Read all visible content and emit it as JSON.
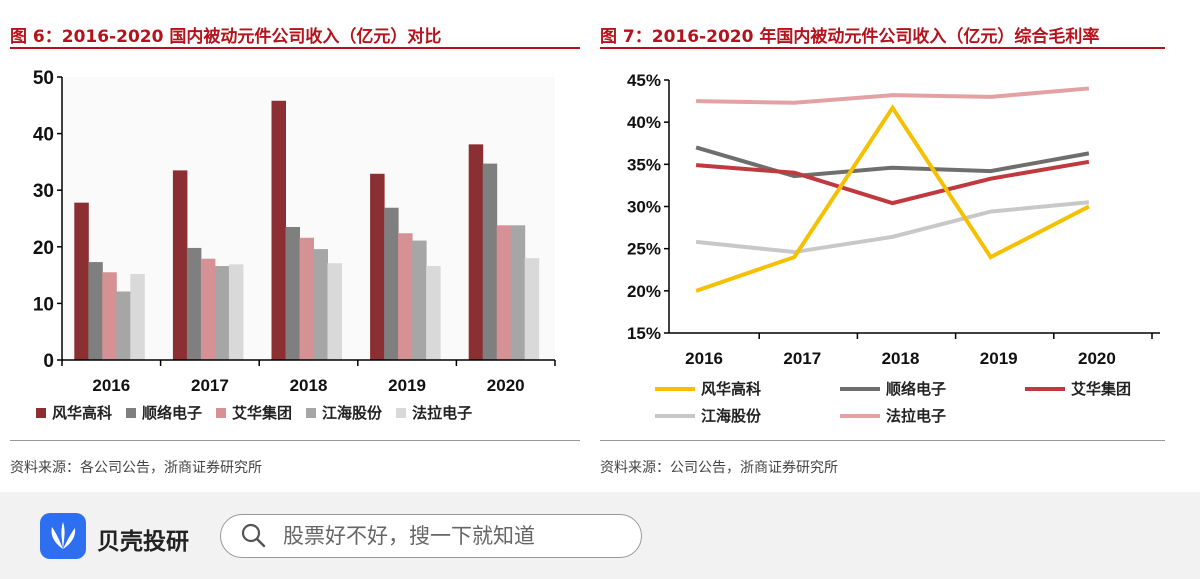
{
  "left": {
    "title": "图 6：2016-2020 国内被动元件公司收入（亿元）对比",
    "source": "资料来源：各公司公告，浙商证券研究所"
  },
  "right": {
    "title": "图 7：2016-2020 年国内被动元件公司收入（亿元）综合毛利率",
    "source": "资料来源：公司公告，浙商证券研究所"
  },
  "chart_data": [
    {
      "type": "bar",
      "title": "",
      "ylim": [
        0,
        50
      ],
      "yticks": [
        "0",
        "10",
        "20",
        "30",
        "40",
        "50"
      ],
      "categories": [
        "2016",
        "2017",
        "2018",
        "2019",
        "2020"
      ],
      "legend": "bottom",
      "series": [
        {
          "name": "风华高科",
          "color": "#8b2f33",
          "values": [
            27.8,
            33.5,
            45.8,
            32.9,
            38.1
          ]
        },
        {
          "name": "顺络电子",
          "color": "#7f7f7f",
          "values": [
            17.3,
            19.8,
            23.5,
            26.9,
            34.7
          ]
        },
        {
          "name": "艾华集团",
          "color": "#d69194",
          "values": [
            15.5,
            17.9,
            21.6,
            22.4,
            23.8
          ]
        },
        {
          "name": "江海股份",
          "color": "#a6a6a6",
          "values": [
            12.1,
            16.6,
            19.6,
            21.1,
            23.8
          ]
        },
        {
          "name": "法拉电子",
          "color": "#d9d9d9",
          "values": [
            15.2,
            16.9,
            17.1,
            16.6,
            18.0
          ]
        }
      ]
    },
    {
      "type": "line",
      "title": "",
      "ylim": [
        15,
        45
      ],
      "yticks": [
        "15%",
        "20%",
        "25%",
        "30%",
        "35%",
        "40%",
        "45%"
      ],
      "categories": [
        "2016",
        "2017",
        "2018",
        "2019",
        "2020"
      ],
      "legend": "bottom",
      "series": [
        {
          "name": "风华高科",
          "color": "#f5c000",
          "values": [
            20.0,
            24.0,
            41.7,
            24.0,
            30.0
          ]
        },
        {
          "name": "顺络电子",
          "color": "#6e6e6e",
          "values": [
            37.0,
            33.6,
            34.6,
            34.2,
            36.3
          ]
        },
        {
          "name": "艾华集团",
          "color": "#c0393f",
          "values": [
            34.9,
            34.0,
            30.4,
            33.3,
            35.3
          ]
        },
        {
          "name": "江海股份",
          "color": "#c8c8c8",
          "values": [
            25.8,
            24.6,
            26.4,
            29.4,
            30.5
          ]
        },
        {
          "name": "法拉电子",
          "color": "#e3a1a4",
          "values": [
            42.5,
            42.3,
            43.2,
            43.0,
            44.0
          ]
        }
      ]
    }
  ],
  "footer": {
    "brand": "贝壳投研",
    "search_placeholder": "股票好不好，搜一下就知道",
    "logo_color": "#2d6ff0"
  }
}
